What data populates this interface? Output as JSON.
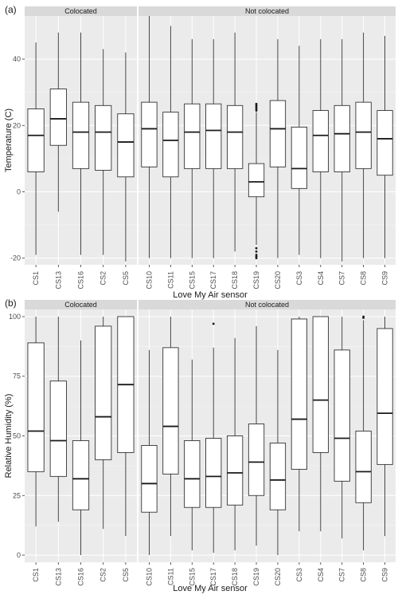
{
  "chart_data": [
    {
      "type": "boxplot",
      "tag": "(a)",
      "xlabel": "Love My Air sensor",
      "ylabel": "Temperature (C)",
      "ylim": [
        -22,
        53
      ],
      "yticks": [
        -20,
        0,
        20,
        40
      ],
      "grid": true,
      "facets": [
        {
          "title": "Colocated",
          "categories": [
            "CS1",
            "CS13",
            "CS16",
            "CS2",
            "CS5"
          ],
          "boxes": [
            {
              "min": -19,
              "q1": 6,
              "median": 17,
              "q3": 25,
              "max": 45,
              "outliers": []
            },
            {
              "min": -6,
              "q1": 14,
              "median": 22,
              "q3": 31,
              "max": 48,
              "outliers": []
            },
            {
              "min": -19,
              "q1": 7,
              "median": 18,
              "q3": 27,
              "max": 48,
              "outliers": []
            },
            {
              "min": -19,
              "q1": 6.5,
              "median": 18,
              "q3": 26,
              "max": 43,
              "outliers": []
            },
            {
              "min": -21,
              "q1": 4.5,
              "median": 15,
              "q3": 23.5,
              "max": 42,
              "outliers": []
            }
          ]
        },
        {
          "title": "Not colocated",
          "categories": [
            "CS10",
            "CS11",
            "CS15",
            "CS17",
            "CS18",
            "CS19",
            "CS20",
            "CS3",
            "CS4",
            "CS7",
            "CS8",
            "CS9"
          ],
          "boxes": [
            {
              "min": -20,
              "q1": 7.5,
              "median": 19,
              "q3": 27,
              "max": 53,
              "outliers": []
            },
            {
              "min": -20,
              "q1": 4.5,
              "median": 15.5,
              "q3": 24,
              "max": 50,
              "outliers": []
            },
            {
              "min": -20,
              "q1": 7,
              "median": 18,
              "q3": 26.5,
              "max": 46,
              "outliers": []
            },
            {
              "min": -20,
              "q1": 7,
              "median": 18.5,
              "q3": 26.5,
              "max": 46,
              "outliers": []
            },
            {
              "min": -18,
              "q1": 7,
              "median": 18,
              "q3": 26,
              "max": 48,
              "outliers": []
            },
            {
              "min": -16,
              "q1": -1.5,
              "median": 3,
              "q3": 8.5,
              "max": 24,
              "outliers": [
                24.5,
                25,
                25.5,
                26,
                26.5,
                -17,
                -18,
                -19,
                -19.5,
                -20
              ]
            },
            {
              "min": -20,
              "q1": 7.5,
              "median": 19,
              "q3": 27.5,
              "max": 46,
              "outliers": []
            },
            {
              "min": -19,
              "q1": 1,
              "median": 7,
              "q3": 19.5,
              "max": 44,
              "outliers": []
            },
            {
              "min": -20,
              "q1": 6,
              "median": 17,
              "q3": 24.5,
              "max": 46,
              "outliers": []
            },
            {
              "min": -21,
              "q1": 6,
              "median": 17.5,
              "q3": 26,
              "max": 46,
              "outliers": []
            },
            {
              "min": -20,
              "q1": 7,
              "median": 18,
              "q3": 27,
              "max": 48,
              "outliers": []
            },
            {
              "min": -20,
              "q1": 5,
              "median": 16,
              "q3": 24.5,
              "max": 47,
              "outliers": []
            }
          ]
        }
      ]
    },
    {
      "type": "boxplot",
      "tag": "(b)",
      "xlabel": "Love My Air sensor",
      "ylabel": "Relative Humidity (%)",
      "ylim": [
        -3,
        103
      ],
      "yticks": [
        0,
        25,
        50,
        75,
        100
      ],
      "grid": true,
      "facets": [
        {
          "title": "Colocated",
          "categories": [
            "CS1",
            "CS13",
            "CS16",
            "CS2",
            "CS5"
          ],
          "boxes": [
            {
              "min": 12,
              "q1": 35,
              "median": 52,
              "q3": 89,
              "max": 100,
              "outliers": []
            },
            {
              "min": 14,
              "q1": 33,
              "median": 48,
              "q3": 73,
              "max": 100,
              "outliers": []
            },
            {
              "min": 0,
              "q1": 19,
              "median": 32,
              "q3": 48,
              "max": 90,
              "outliers": []
            },
            {
              "min": 11,
              "q1": 40,
              "median": 58,
              "q3": 96,
              "max": 100,
              "outliers": []
            },
            {
              "min": 8,
              "q1": 43,
              "median": 71.5,
              "q3": 100,
              "max": 100,
              "outliers": []
            }
          ]
        },
        {
          "title": "Not colocated",
          "categories": [
            "CS10",
            "CS11",
            "CS15",
            "CS17",
            "CS18",
            "CS19",
            "CS20",
            "CS3",
            "CS4",
            "CS7",
            "CS8",
            "CS9"
          ],
          "boxes": [
            {
              "min": 0,
              "q1": 18,
              "median": 30,
              "q3": 46,
              "max": 86,
              "outliers": []
            },
            {
              "min": 8,
              "q1": 34,
              "median": 54,
              "q3": 87,
              "max": 100,
              "outliers": []
            },
            {
              "min": 2,
              "q1": 20,
              "median": 32,
              "q3": 48,
              "max": 82,
              "outliers": []
            },
            {
              "min": 1,
              "q1": 20,
              "median": 33,
              "q3": 49,
              "max": 87,
              "outliers": [
                97
              ]
            },
            {
              "min": 2,
              "q1": 21,
              "median": 34.5,
              "q3": 50,
              "max": 91,
              "outliers": []
            },
            {
              "min": 4,
              "q1": 25,
              "median": 39,
              "q3": 55,
              "max": 96,
              "outliers": []
            },
            {
              "min": 0,
              "q1": 19,
              "median": 31.5,
              "q3": 47,
              "max": 86,
              "outliers": []
            },
            {
              "min": 10,
              "q1": 36,
              "median": 57,
              "q3": 99,
              "max": 100,
              "outliers": []
            },
            {
              "min": 10,
              "q1": 43,
              "median": 65,
              "q3": 100,
              "max": 100,
              "outliers": []
            },
            {
              "min": 7,
              "q1": 31,
              "median": 49,
              "q3": 86,
              "max": 100,
              "outliers": []
            },
            {
              "min": 2,
              "q1": 22,
              "median": 35,
              "q3": 52,
              "max": 98.5,
              "outliers": [
                99.5,
                100
              ]
            },
            {
              "min": 8,
              "q1": 38,
              "median": 59.5,
              "q3": 95,
              "max": 100,
              "outliers": []
            }
          ]
        }
      ]
    }
  ]
}
